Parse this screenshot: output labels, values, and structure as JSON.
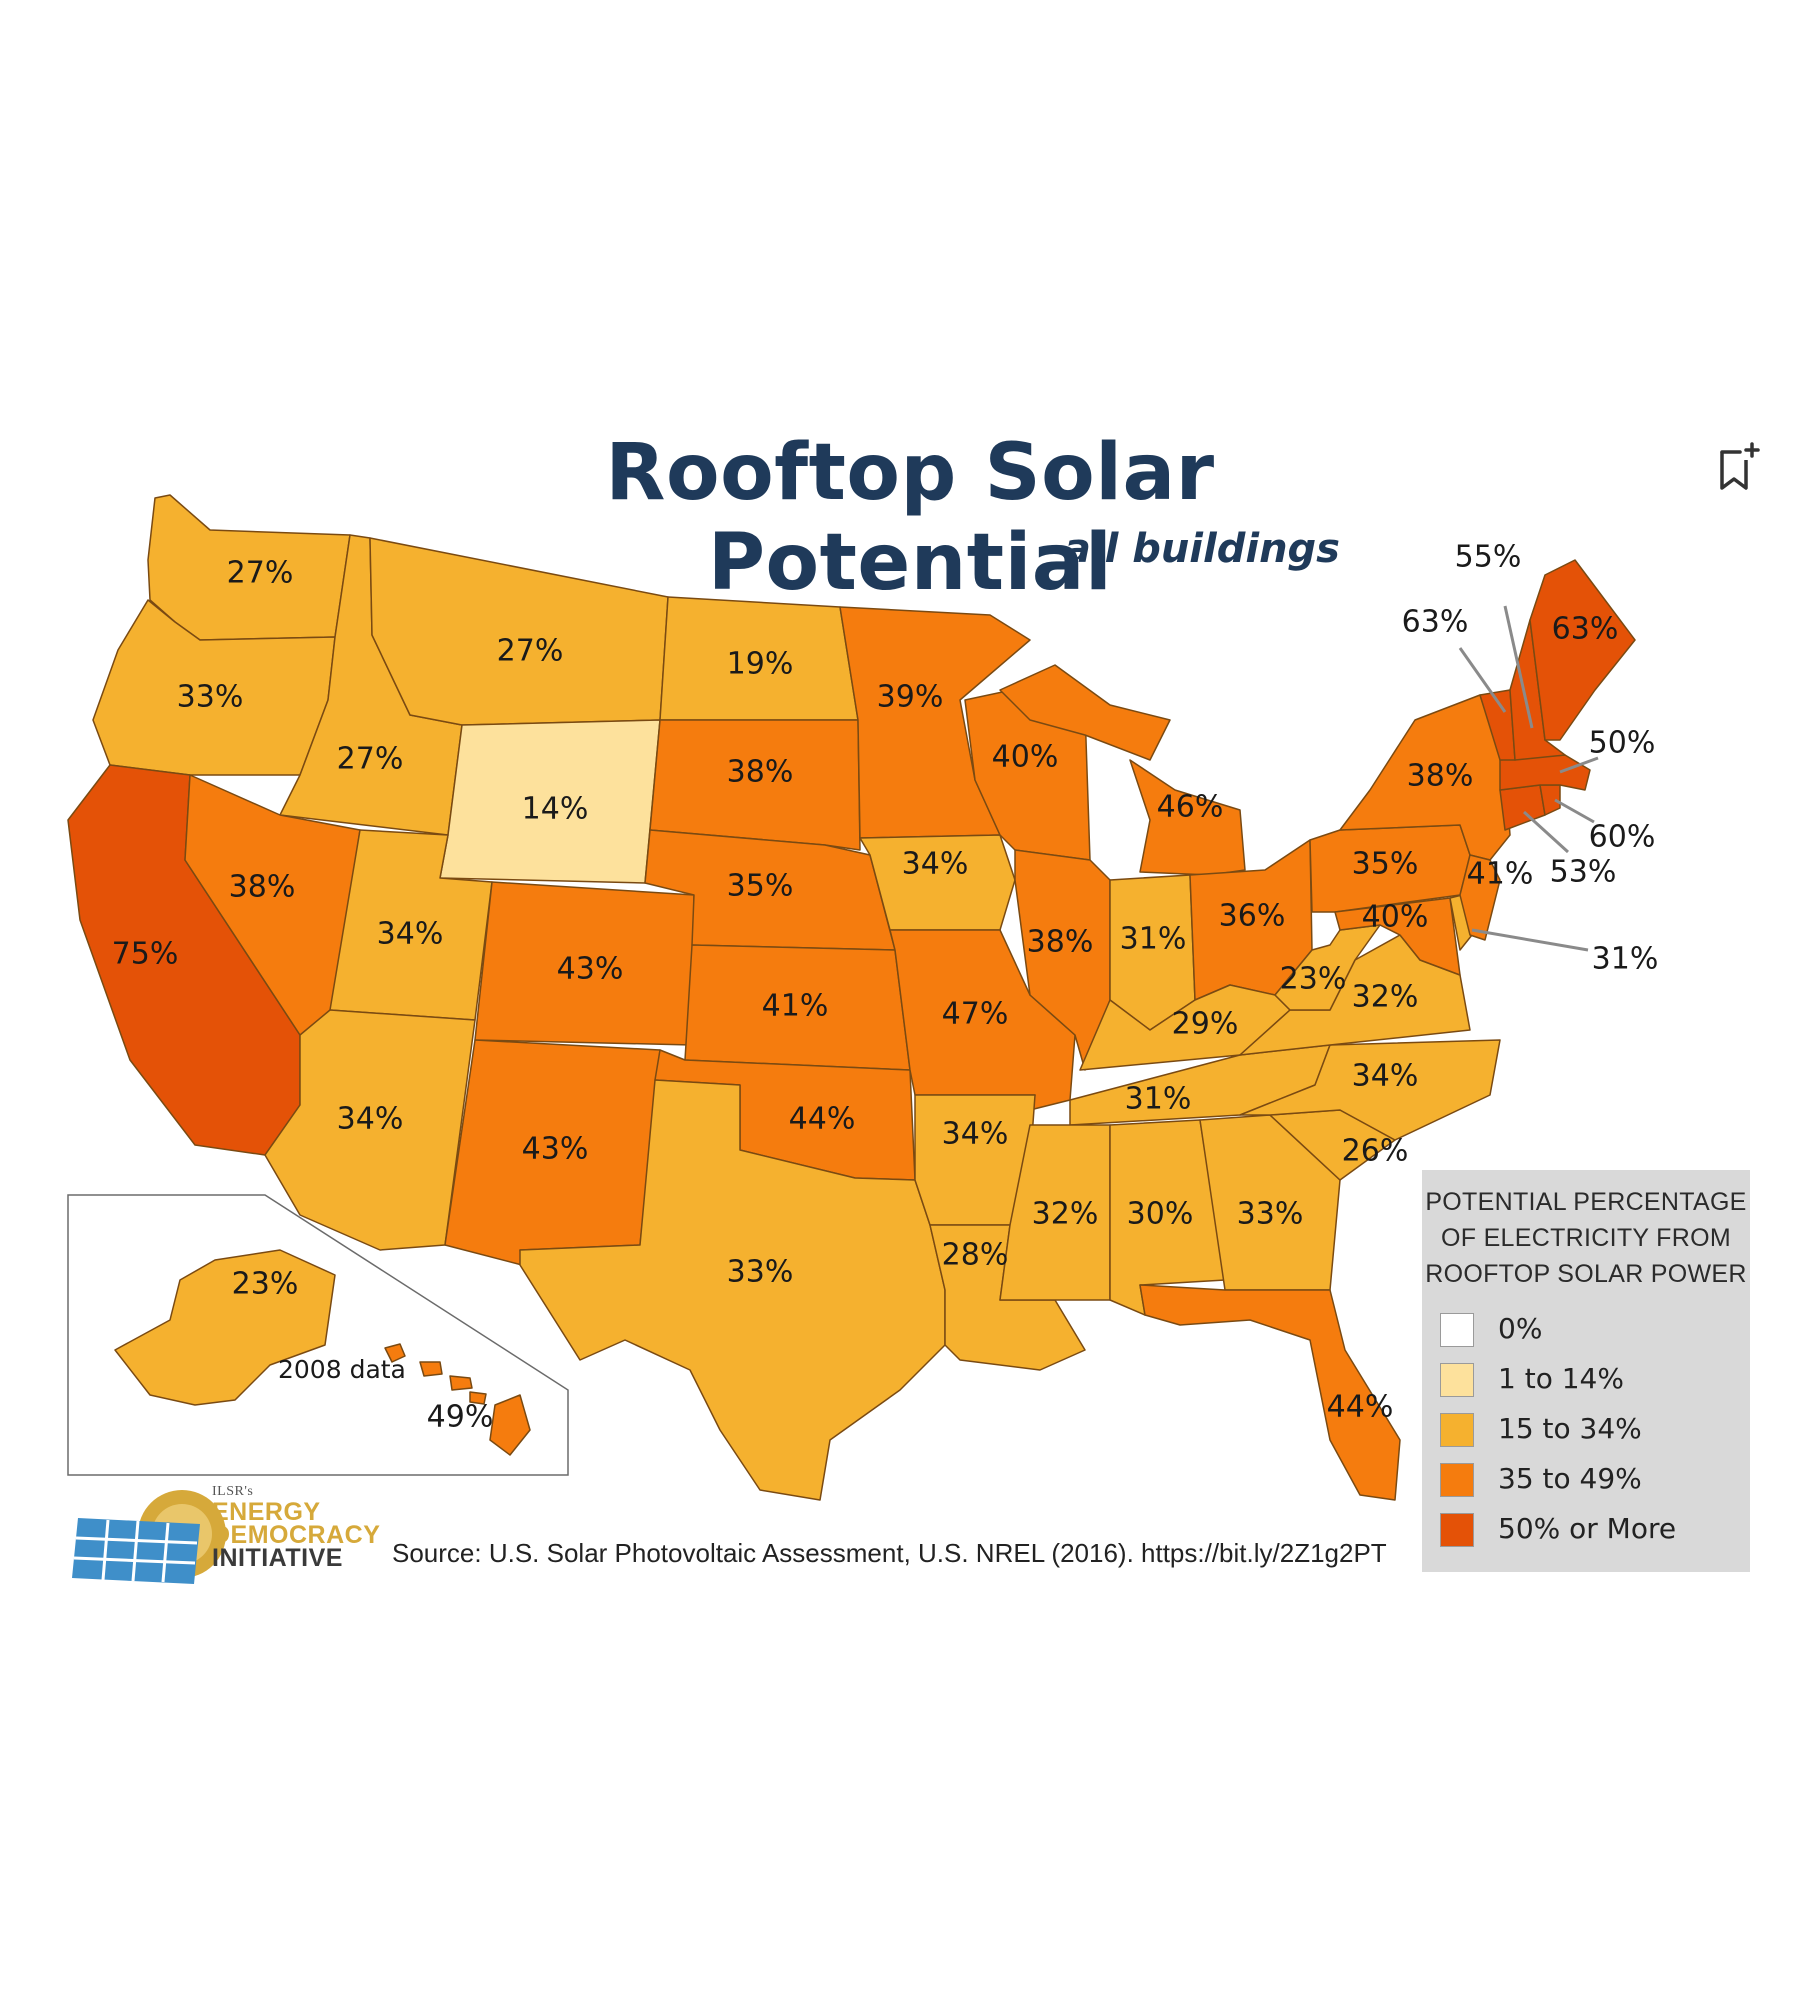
{
  "title": "Rooftop Solar Potential",
  "subtitle": "all buildings",
  "source": "Source: U.S. Solar Photovoltaic Assessment, U.S. NREL (2016). https://bit.ly/2Z1g2PT",
  "legend": {
    "title_lines": [
      "POTENTIAL PERCENTAGE",
      "OF ELECTRICITY FROM",
      "ROOFTOP SOLAR POWER"
    ],
    "items": [
      {
        "label": "0%",
        "color": "#ffffff"
      },
      {
        "label": "1 to 14%",
        "color": "#fde19c"
      },
      {
        "label": "15 to 34%",
        "color": "#f5b12f"
      },
      {
        "label": "35 to 49%",
        "color": "#f57c0e"
      },
      {
        "label": "50% or More",
        "color": "#e45207"
      }
    ]
  },
  "logo": {
    "small": "ILSR's",
    "line1": "ENERGY",
    "line2": "DEMOCRACY",
    "line3": "INITIATIVE"
  },
  "inset": {
    "note": "2008 data"
  },
  "icons": {
    "bookmark": "bookmark-add-icon",
    "logo": "solar-panel-logo-icon"
  },
  "states": [
    {
      "name": "Washington",
      "label": "27%",
      "value": 27
    },
    {
      "name": "Oregon",
      "label": "33%",
      "value": 33
    },
    {
      "name": "California",
      "label": "75%",
      "value": 75
    },
    {
      "name": "Idaho",
      "label": "27%",
      "value": 27
    },
    {
      "name": "Nevada",
      "label": "38%",
      "value": 38
    },
    {
      "name": "Montana",
      "label": "27%",
      "value": 27
    },
    {
      "name": "Wyoming",
      "label": "14%",
      "value": 14
    },
    {
      "name": "Utah",
      "label": "34%",
      "value": 34
    },
    {
      "name": "Arizona",
      "label": "34%",
      "value": 34
    },
    {
      "name": "Colorado",
      "label": "43%",
      "value": 43
    },
    {
      "name": "New Mexico",
      "label": "43%",
      "value": 43
    },
    {
      "name": "North Dakota",
      "label": "19%",
      "value": 19
    },
    {
      "name": "South Dakota",
      "label": "38%",
      "value": 38
    },
    {
      "name": "Nebraska",
      "label": "35%",
      "value": 35
    },
    {
      "name": "Kansas",
      "label": "41%",
      "value": 41
    },
    {
      "name": "Oklahoma",
      "label": "44%",
      "value": 44
    },
    {
      "name": "Texas",
      "label": "33%",
      "value": 33
    },
    {
      "name": "Minnesota",
      "label": "39%",
      "value": 39
    },
    {
      "name": "Iowa",
      "label": "34%",
      "value": 34
    },
    {
      "name": "Missouri",
      "label": "47%",
      "value": 47
    },
    {
      "name": "Arkansas",
      "label": "34%",
      "value": 34
    },
    {
      "name": "Louisiana",
      "label": "28%",
      "value": 28
    },
    {
      "name": "Wisconsin",
      "label": "40%",
      "value": 40
    },
    {
      "name": "Illinois",
      "label": "38%",
      "value": 38
    },
    {
      "name": "Michigan",
      "label": "46%",
      "value": 46
    },
    {
      "name": "Indiana",
      "label": "31%",
      "value": 31
    },
    {
      "name": "Ohio",
      "label": "36%",
      "value": 36
    },
    {
      "name": "Kentucky",
      "label": "29%",
      "value": 29
    },
    {
      "name": "Tennessee",
      "label": "31%",
      "value": 31
    },
    {
      "name": "Mississippi",
      "label": "32%",
      "value": 32
    },
    {
      "name": "Alabama",
      "label": "30%",
      "value": 30
    },
    {
      "name": "Georgia",
      "label": "33%",
      "value": 33
    },
    {
      "name": "Florida",
      "label": "44%",
      "value": 44
    },
    {
      "name": "South Carolina",
      "label": "26%",
      "value": 26
    },
    {
      "name": "North Carolina",
      "label": "34%",
      "value": 34
    },
    {
      "name": "Virginia",
      "label": "32%",
      "value": 32
    },
    {
      "name": "West Virginia",
      "label": "23%",
      "value": 23
    },
    {
      "name": "Pennsylvania",
      "label": "35%",
      "value": 35
    },
    {
      "name": "New York",
      "label": "38%",
      "value": 38
    },
    {
      "name": "Maryland",
      "label": "40%",
      "value": 40
    },
    {
      "name": "Delaware",
      "label": "31%",
      "value": 31
    },
    {
      "name": "New Jersey",
      "label": "41%",
      "value": 41
    },
    {
      "name": "Connecticut",
      "label": "53%",
      "value": 53
    },
    {
      "name": "Rhode Island",
      "label": "60%",
      "value": 60
    },
    {
      "name": "Massachusetts",
      "label": "50%",
      "value": 50
    },
    {
      "name": "Vermont",
      "label": "63%",
      "value": 63
    },
    {
      "name": "New Hampshire",
      "label": "55%",
      "value": 55
    },
    {
      "name": "Maine",
      "label": "63%",
      "value": 63
    },
    {
      "name": "Alaska",
      "label": "23%",
      "value": 23
    },
    {
      "name": "Hawaii",
      "label": "49%",
      "value": 49
    }
  ]
}
